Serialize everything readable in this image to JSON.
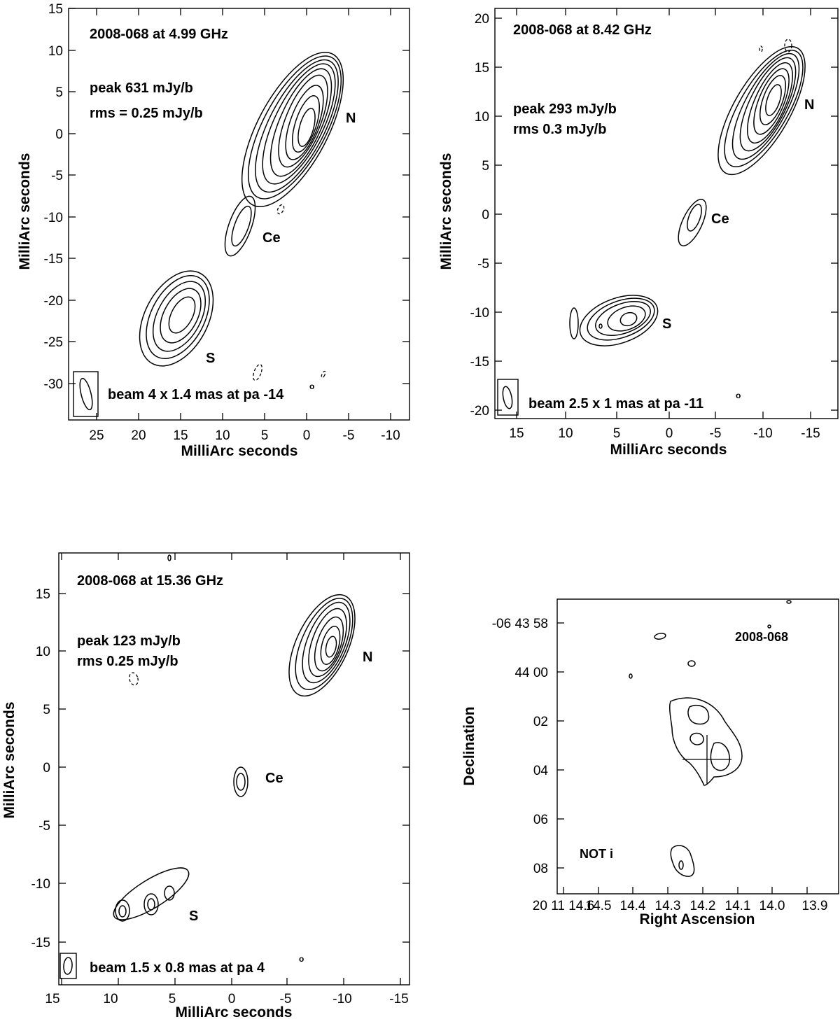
{
  "panels": [
    {
      "title": "2008-068  at   4.99 GHz",
      "peak": "peak 631 mJy/b",
      "rms": "rms = 0.25 mJy/b",
      "beam": "beam 4 x 1.4 mas at pa -14",
      "deg": "o",
      "xlabel": "MilliArc seconds",
      "ylabel": "MilliArc seconds",
      "xticks": [
        "25",
        "20",
        "15",
        "10",
        "5",
        "0",
        "-5",
        "-10"
      ],
      "yticks": [
        "15",
        "10",
        "5",
        "0",
        "-5",
        "-10",
        "-15",
        "-20",
        "-25",
        "-30"
      ],
      "labels": {
        "n": "N",
        "ce": "Ce",
        "s": "S"
      }
    },
    {
      "title": "2008-068 at 8.42 GHz",
      "peak": "peak  293 mJy/b",
      "rms": "rms 0.3 mJy/b",
      "beam": "beam 2.5 x 1 mas at pa -11",
      "deg": "o",
      "xlabel": "MilliArc seconds",
      "ylabel": "MilliArc seconds",
      "xticks": [
        "15",
        "10",
        "5",
        "0",
        "-5",
        "-10",
        "-15"
      ],
      "yticks": [
        "20",
        "15",
        "10",
        "5",
        "0",
        "-5",
        "-10",
        "-15",
        "-20"
      ],
      "labels": {
        "n": "N",
        "ce": "Ce",
        "s": "S"
      }
    },
    {
      "title": "2008-068 at 15.36 GHz",
      "peak": "peak  123 mJy/b",
      "rms": "rms 0.25 mJy/b",
      "beam": "beam 1.5 x 0.8 mas at pa 4",
      "deg": "o",
      "xlabel": "MilliArc seconds",
      "ylabel": "MilliArc seconds",
      "xticks": [
        "15",
        "10",
        "5",
        "0",
        "-5",
        "-10",
        "-15"
      ],
      "yticks": [
        "15",
        "10",
        "5",
        "0",
        "-5",
        "-10",
        "-15"
      ],
      "labels": {
        "n": "N",
        "ce": "Ce",
        "s": "S"
      }
    },
    {
      "title": "2008-068",
      "label": "NOT i",
      "xlabel": "Right Ascension",
      "ylabel": "Declination",
      "xticks": [
        "20 11 14.6",
        "14.5",
        "14.4",
        "14.3",
        "14.2",
        "14.1",
        "14.0",
        "13.9"
      ],
      "yticks": [
        "-06 43 58",
        "44 00",
        "02",
        "04",
        "06",
        "08"
      ]
    }
  ]
}
